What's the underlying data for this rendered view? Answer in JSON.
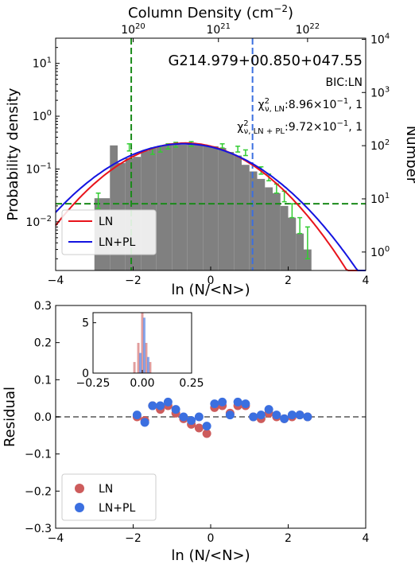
{
  "chart_data": [
    {
      "type": "bar",
      "top_xlabel": "Column Density (cm",
      "top_xlabel_sup": "−2",
      "top_xlabel_close": ")",
      "top_ticks": [
        {
          "base": "10",
          "exp": "20",
          "x": -2.0
        },
        {
          "base": "10",
          "exp": "21",
          "x": 0.2
        },
        {
          "base": "10",
          "exp": "22",
          "x": 2.5
        }
      ],
      "xlabel": "ln (N/<N>)",
      "ylabel": "Probability density",
      "ylabel_right": "Number",
      "xlim": [
        -4,
        4
      ],
      "ylim_log": [
        0.0012,
        30
      ],
      "y_ticks": [
        {
          "base": "10",
          "exp": "1",
          "v": 10
        },
        {
          "base": "10",
          "exp": "0",
          "v": 1
        },
        {
          "base": "10",
          "exp": "−1",
          "v": 0.1
        },
        {
          "base": "10",
          "exp": "−2",
          "v": 0.01
        }
      ],
      "right_ticks": [
        {
          "base": "10",
          "exp": "4",
          "v": 10000
        },
        {
          "base": "10",
          "exp": "3",
          "v": 1000
        },
        {
          "base": "10",
          "exp": "2",
          "v": 100
        },
        {
          "base": "10",
          "exp": "1",
          "v": 10
        },
        {
          "base": "10",
          "exp": "0",
          "v": 1
        }
      ],
      "right_ylim_log": [
        0.45,
        10500
      ],
      "x_ticks": [
        "−4",
        "−2",
        "0",
        "2",
        "4"
      ],
      "title": "G214.979+00.850+047.55",
      "bic": "BIC:LN",
      "chi_ln_value": ":8.96×10",
      "chi_ln_exp": "−1",
      "chi_ln_tail": ", 1",
      "chi_lnpl_value": ":9.72×10",
      "chi_lnpl_exp": "−1",
      "chi_lnpl_tail": ", 1",
      "chi_symbol": "χ",
      "chi_sup": "2",
      "chi_sub_ln": "ν, LN",
      "chi_sub_lnpl": "ν, LN + PL",
      "hist_bins": {
        "edges_start": -3.0,
        "edge_width": 0.2,
        "values": [
          0.028,
          0.028,
          0.28,
          0.13,
          0.16,
          0.17,
          0.22,
          0.25,
          0.27,
          0.29,
          0.29,
          0.29,
          0.3,
          0.29,
          0.28,
          0.27,
          0.25,
          0.21,
          0.18,
          0.12,
          0.09,
          0.065,
          0.045,
          0.035,
          0.02,
          0.012,
          0.006,
          0.003
        ]
      },
      "err_bars": [
        {
          "x": -2.9,
          "lo": 0.018,
          "hi": 0.035
        },
        {
          "x": -2.1,
          "lo": 0.22,
          "hi": 0.3
        },
        {
          "x": -1.5,
          "lo": 0.19,
          "hi": 0.25
        },
        {
          "x": -1.3,
          "lo": 0.21,
          "hi": 0.27
        },
        {
          "x": -1.1,
          "lo": 0.24,
          "hi": 0.3
        },
        {
          "x": -0.9,
          "lo": 0.26,
          "hi": 0.32
        },
        {
          "x": -0.5,
          "lo": 0.27,
          "hi": 0.33
        },
        {
          "x": 0.3,
          "lo": 0.25,
          "hi": 0.3
        },
        {
          "x": 0.7,
          "lo": 0.21,
          "hi": 0.27
        },
        {
          "x": 0.9,
          "lo": 0.18,
          "hi": 0.23
        },
        {
          "x": 1.3,
          "lo": 0.08,
          "hi": 0.11
        },
        {
          "x": 1.5,
          "lo": 0.06,
          "hi": 0.08
        },
        {
          "x": 1.7,
          "lo": 0.035,
          "hi": 0.052
        },
        {
          "x": 1.9,
          "lo": 0.024,
          "hi": 0.038
        },
        {
          "x": 2.1,
          "lo": 0.012,
          "hi": 0.022
        },
        {
          "x": 2.3,
          "lo": 0.006,
          "hi": 0.012
        },
        {
          "x": 2.5,
          "lo": 0.002,
          "hi": 0.008
        }
      ],
      "vline_green_x": -2.05,
      "vline_blue_x": 1.08,
      "hline_green_y": 0.022,
      "ln_mu": -0.65,
      "ln_sigma": 1.25,
      "ln_amp": 0.31,
      "lnpl_mu": -0.7,
      "lnpl_sigma": 1.35,
      "lnpl_amp": 0.3,
      "series": [
        {
          "name": "LN",
          "color": "#e8131b"
        },
        {
          "name": "LN+PL",
          "color": "#1414e0"
        }
      ],
      "legend": "lower-left"
    },
    {
      "type": "scatter",
      "xlabel": "ln (N/<N>)",
      "ylabel": "Residual",
      "xlim": [
        -4,
        4
      ],
      "ylim": [
        -0.3,
        0.3
      ],
      "y_ticks": [
        "0.3",
        "0.2",
        "0.1",
        "0.0",
        "−0.1",
        "−0.2",
        "−0.3"
      ],
      "x_ticks": [
        "−4",
        "−2",
        "0",
        "2",
        "4"
      ],
      "series": [
        {
          "name": "LN",
          "color": "#cd5c5c",
          "points": [
            [
              -1.9,
              0.0
            ],
            [
              -1.7,
              -0.01
            ],
            [
              -1.5,
              0.03
            ],
            [
              -1.3,
              0.02
            ],
            [
              -1.1,
              0.03
            ],
            [
              -0.9,
              0.01
            ],
            [
              -0.7,
              -0.005
            ],
            [
              -0.5,
              -0.02
            ],
            [
              -0.3,
              -0.03
            ],
            [
              -0.1,
              -0.045
            ],
            [
              0.1,
              0.025
            ],
            [
              0.3,
              0.03
            ],
            [
              0.5,
              0.01
            ],
            [
              0.7,
              0.03
            ],
            [
              0.9,
              0.03
            ],
            [
              1.1,
              0.0
            ],
            [
              1.3,
              -0.005
            ],
            [
              1.5,
              0.01
            ],
            [
              1.7,
              0.0
            ],
            [
              1.9,
              -0.005
            ],
            [
              2.1,
              0.0
            ],
            [
              2.3,
              0.005
            ],
            [
              2.5,
              0.0
            ]
          ]
        },
        {
          "name": "LN+PL",
          "color": "#3b6fe0",
          "points": [
            [
              -1.9,
              0.005
            ],
            [
              -1.7,
              -0.015
            ],
            [
              -1.5,
              0.03
            ],
            [
              -1.3,
              0.03
            ],
            [
              -1.1,
              0.04
            ],
            [
              -0.9,
              0.02
            ],
            [
              -0.7,
              0.0
            ],
            [
              -0.5,
              -0.01
            ],
            [
              -0.3,
              0.0
            ],
            [
              -0.1,
              -0.025
            ],
            [
              0.1,
              0.035
            ],
            [
              0.3,
              0.04
            ],
            [
              0.5,
              0.005
            ],
            [
              0.7,
              0.04
            ],
            [
              0.9,
              0.035
            ],
            [
              1.1,
              0.0
            ],
            [
              1.3,
              0.005
            ],
            [
              1.5,
              0.02
            ],
            [
              1.7,
              0.005
            ],
            [
              1.9,
              -0.005
            ],
            [
              2.1,
              0.005
            ],
            [
              2.3,
              0.005
            ],
            [
              2.5,
              0.0
            ]
          ]
        }
      ],
      "legend": "lower-left",
      "inset": {
        "xlim": [
          -0.25,
          0.25
        ],
        "ylim": [
          0,
          6
        ],
        "x_ticks": [
          "−0.25",
          "0.00",
          "0.25"
        ],
        "y_ticks": [
          "5",
          "0"
        ],
        "bars": [
          {
            "x": -0.04,
            "h": 1.1,
            "series": "LN"
          },
          {
            "x": -0.02,
            "h": 3.0,
            "series": "LN"
          },
          {
            "x": 0.0,
            "h": 6.0,
            "series": "LN"
          },
          {
            "x": 0.02,
            "h": 3.0,
            "series": "LN"
          },
          {
            "x": 0.04,
            "h": 1.1,
            "series": "LN"
          },
          {
            "x": -0.01,
            "h": 2.0,
            "series": "LN+PL"
          },
          {
            "x": 0.01,
            "h": 5.5,
            "series": "LN+PL"
          },
          {
            "x": 0.03,
            "h": 1.6,
            "series": "LN+PL"
          }
        ]
      }
    }
  ]
}
